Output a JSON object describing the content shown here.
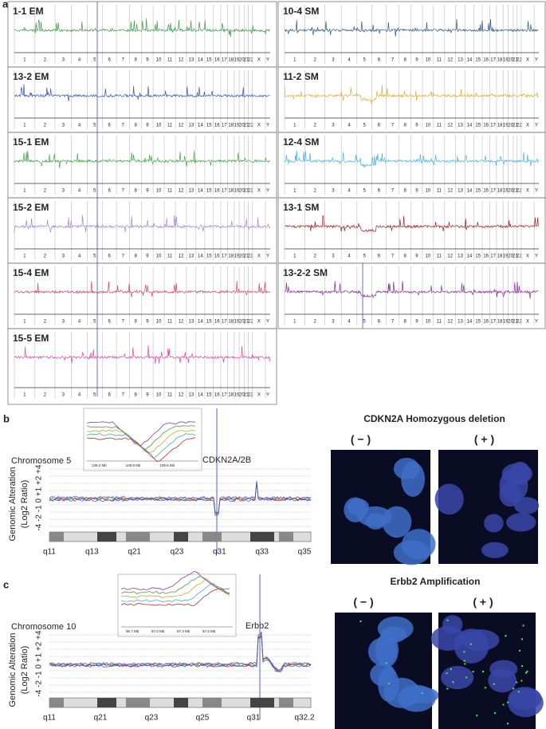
{
  "panel_a": {
    "label": "a",
    "chromosomes": [
      "1",
      "2",
      "3",
      "4",
      "5",
      "6",
      "7",
      "8",
      "9",
      "10",
      "11",
      "12",
      "13",
      "14",
      "15",
      "16",
      "17",
      "18",
      "19",
      "20",
      "21",
      "22",
      "X",
      "Y"
    ],
    "tracks": [
      {
        "name": "1-1 EM",
        "color": "#3f9a45"
      },
      {
        "name": "13-2 EM",
        "color": "#3652b0"
      },
      {
        "name": "15-1 EM",
        "color": "#45a34a"
      },
      {
        "name": "15-2 EM",
        "color": "#9a88d6"
      },
      {
        "name": "15-4 EM",
        "color": "#d4456f"
      },
      {
        "name": "15-5 EM",
        "color": "#d84aa8"
      },
      {
        "name": "10-4 SM",
        "color": "#2b5a88"
      },
      {
        "name": "11-2 SM",
        "color": "#d9b13a"
      },
      {
        "name": "12-4 SM",
        "color": "#45b2e4"
      },
      {
        "name": "13-1 SM",
        "color": "#9e2222"
      },
      {
        "name": "13-2-2 SM",
        "color": "#8b2c9b"
      }
    ]
  },
  "panel_b": {
    "label": "b",
    "chromosome": "Chromosome 5",
    "gene": "CDKN2A/2B",
    "y_label_1": "Genomic Alteration",
    "y_label_2": "(Log2 Ratio)",
    "y_ticks": "-4  -2  -1  0  +1  +2  +4",
    "inset_ticks": [
      "108.2 Mb",
      "108.9 Mb",
      "109.6 Mb"
    ],
    "bands": [
      "q11",
      "q13",
      "q21",
      "q23",
      "q31",
      "q33",
      "q35"
    ],
    "fish_title": "CDKN2A  Homozygous  deletion",
    "neg": "( − )",
    "pos": "( + )"
  },
  "panel_c": {
    "label": "c",
    "chromosome": "Chromosome 10",
    "gene": "Erbb2",
    "y_label_1": "Genomic Alteration",
    "y_label_2": "(Log2 Ratio)",
    "y_ticks": "-4  -2  -1  0  +1  +2  +4",
    "inset_ticks": [
      "96.7 Mb",
      "97.0 Mb",
      "97.3 Mb",
      "97.6 Mb"
    ],
    "bands": [
      "q11",
      "q21",
      "q23",
      "q25",
      "q31",
      "q32.2"
    ],
    "fish_title": "Erbb2 Amplification",
    "neg": "( − )",
    "pos": "( + )"
  }
}
